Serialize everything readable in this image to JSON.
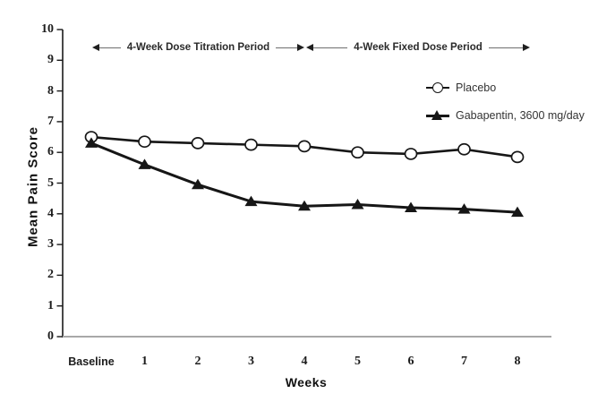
{
  "figure": {
    "y_axis_title": "Mean Pain Score",
    "x_axis_title": "Weeks",
    "annotations": {
      "titration_period": "4-Week Dose Titration Period",
      "fixed_period": "4-Week Fixed Dose Period"
    },
    "legend": [
      {
        "label": "Placebo",
        "marker": "open-circle"
      },
      {
        "label": "Gabapentin, 3600 mg/day",
        "marker": "filled-triangle"
      }
    ],
    "colors": {
      "line": "#161616",
      "axis": "#1a1a1a",
      "x_axis_line": "#a8a8a8",
      "background": "#ffffff"
    }
  },
  "chart_data": {
    "type": "line",
    "title": "",
    "xlabel": "Weeks",
    "ylabel": "Mean Pain Score",
    "categories": [
      "Baseline",
      "1",
      "2",
      "3",
      "4",
      "5",
      "6",
      "7",
      "8"
    ],
    "series": [
      {
        "name": "Placebo",
        "marker": "open-circle",
        "values": [
          6.5,
          6.35,
          6.3,
          6.25,
          6.2,
          6.0,
          5.95,
          6.1,
          5.85
        ]
      },
      {
        "name": "Gabapentin, 3600 mg/day",
        "marker": "filled-triangle",
        "values": [
          6.3,
          5.6,
          4.95,
          4.4,
          4.25,
          4.3,
          4.2,
          4.15,
          4.05
        ]
      }
    ],
    "ylim": [
      0,
      10
    ],
    "yticks": [
      0,
      1,
      2,
      3,
      4,
      5,
      6,
      7,
      8,
      9,
      10
    ],
    "grid": false,
    "legend_position": "upper-right",
    "annotation_arrows": [
      {
        "label": "4-Week Dose Titration Period",
        "span_categories": [
          "Baseline",
          "4"
        ]
      },
      {
        "label": "4-Week Fixed Dose Period",
        "span_categories": [
          "4",
          "8"
        ]
      }
    ]
  }
}
